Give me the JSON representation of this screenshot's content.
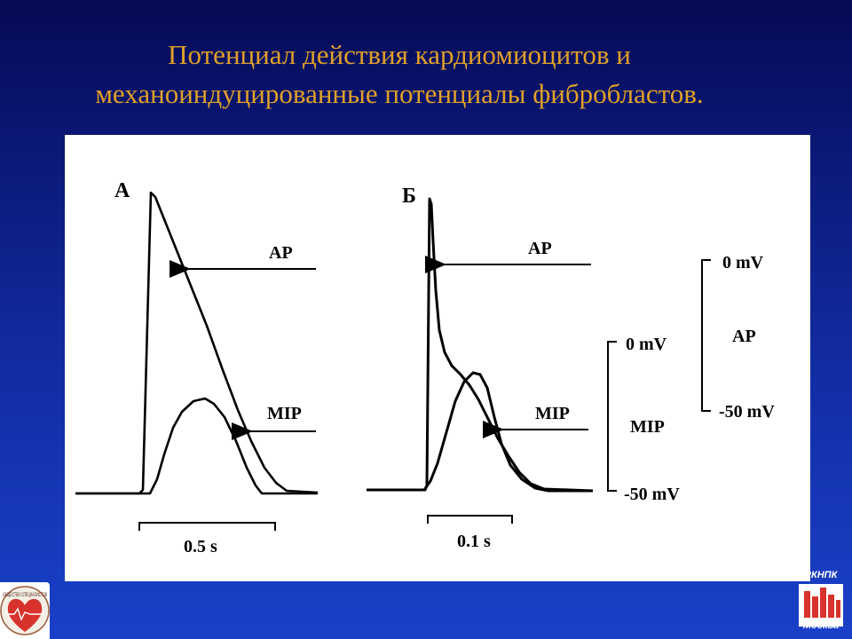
{
  "title": {
    "line1": "Потенциал действия кардиомиоцитов и",
    "line2": "механоиндуцированные потенциалы фибробластов."
  },
  "panel_a": {
    "letter": "А",
    "ap_label": "AP",
    "mip_label": "MIP",
    "time_scale": "0.5 s"
  },
  "panel_b": {
    "letter": "Б",
    "ap_label": "AP",
    "mip_label": "MIP",
    "time_scale": "0.1 s"
  },
  "scale_mip": {
    "top": "0 mV",
    "name": "MIP",
    "bottom": "-50 mV"
  },
  "scale_ap": {
    "top": "0 mV",
    "name": "AP",
    "bottom": "-50 mV"
  },
  "logo_left": {
    "text": "ОБЩЕСТВО СПЕЦИАЛИСТОВ"
  },
  "logo_right": {
    "top_text": "РКНПК",
    "bottom_text": "Москва"
  },
  "colors": {
    "title": "#e0a02a",
    "background": "#0d1f86",
    "logo_red": "#d8322c"
  }
}
